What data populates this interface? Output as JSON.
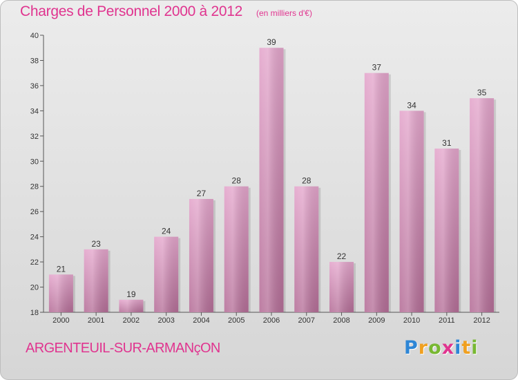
{
  "chart_data": {
    "type": "bar",
    "title": "Charges de Personnel 2000 à 2012",
    "subtitle": "(en milliers d'€)",
    "categories": [
      "2000",
      "2001",
      "2002",
      "2003",
      "2004",
      "2005",
      "2006",
      "2007",
      "2008",
      "2009",
      "2010",
      "2011",
      "2012"
    ],
    "values": [
      21,
      23,
      19,
      24,
      27,
      28,
      39,
      28,
      22,
      37,
      34,
      31,
      35
    ],
    "ylim": [
      18,
      40
    ],
    "yticks": [
      18,
      20,
      22,
      24,
      26,
      28,
      30,
      32,
      34,
      36,
      38,
      40
    ],
    "grid": false,
    "colors": {
      "bar_top": "#e4a6cc",
      "bar_bottom": "#b56f98",
      "title": "#e0348f"
    }
  },
  "footer": {
    "commune": "ARGENTEUIL-SUR-ARMANçON",
    "brand_letters": [
      {
        "ch": "P",
        "color": "#2e86d6"
      },
      {
        "ch": "r",
        "color": "#f0a020"
      },
      {
        "ch": "o",
        "color": "#78b832"
      },
      {
        "ch": "x",
        "color": "#e0348f"
      },
      {
        "ch": "i",
        "color": "#2e86d6"
      },
      {
        "ch": "t",
        "color": "#f0a020"
      },
      {
        "ch": "i",
        "color": "#78b832"
      }
    ]
  }
}
